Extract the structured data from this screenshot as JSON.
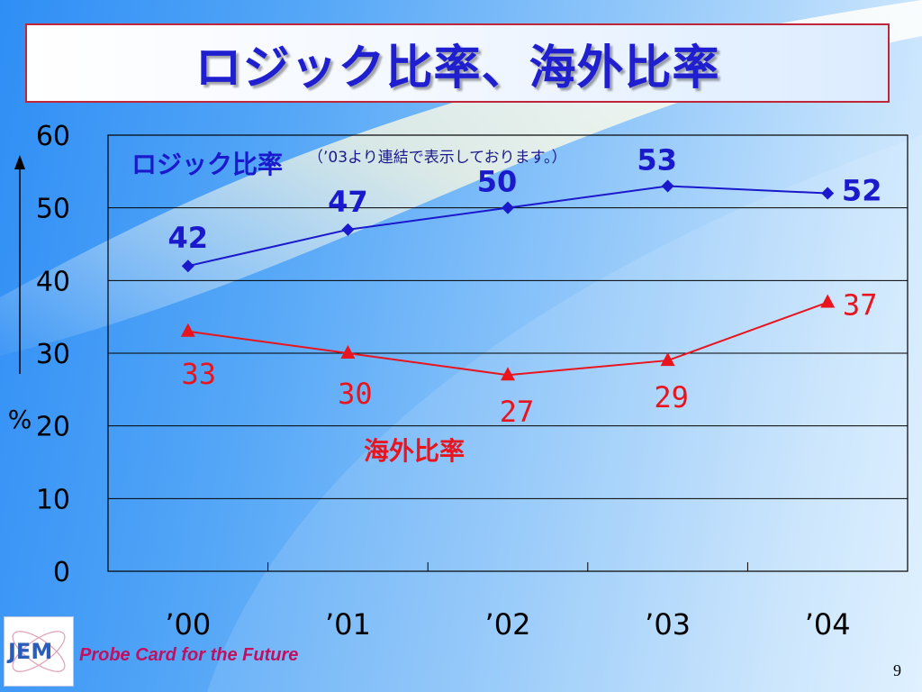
{
  "slide": {
    "title": "ロジック比率、海外比率",
    "tagline": "Probe Card for the Future",
    "logo_text": "JEM",
    "page_number": "9",
    "unit_label": "%"
  },
  "chart_data": {
    "type": "line",
    "categories": [
      "’00",
      "’01",
      "’02",
      "’03",
      "’04"
    ],
    "ylim": [
      0,
      60
    ],
    "yticks": [
      "0",
      "10",
      "20",
      "30",
      "40",
      "50",
      "60"
    ],
    "grid": true,
    "series": [
      {
        "name": "ロジック比率",
        "note": "（’03より連結で表示しております。）",
        "values": [
          42,
          47,
          50,
          53,
          52
        ],
        "color": "#1a1acc",
        "marker": "diamond"
      },
      {
        "name": "海外比率",
        "values": [
          33,
          30,
          27,
          29,
          37
        ],
        "color": "#e8141e",
        "marker": "triangle"
      }
    ]
  }
}
